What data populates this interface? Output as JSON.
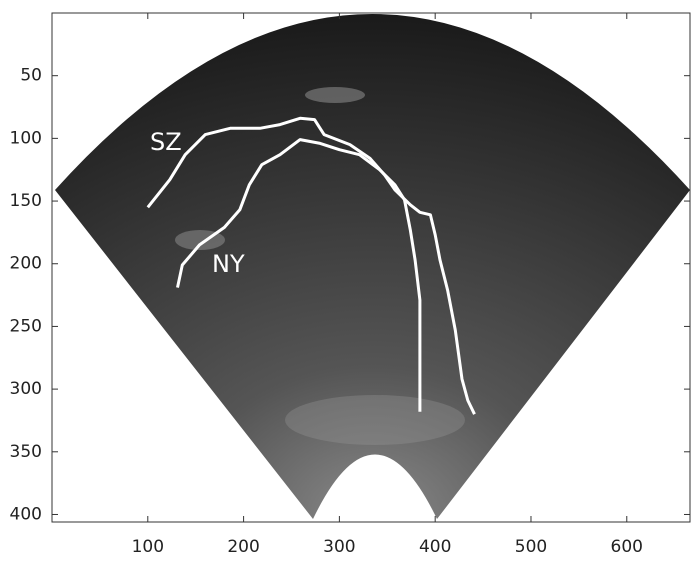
{
  "chart_data": {
    "type": "line",
    "xlim": [
      0,
      666
    ],
    "ylim": [
      0,
      406
    ],
    "y_reversed": true,
    "xticks": [
      100,
      200,
      300,
      400,
      500,
      600
    ],
    "yticks": [
      50,
      100,
      150,
      200,
      250,
      300,
      350,
      400
    ],
    "series": [
      {
        "name": "SZ",
        "color": "#ffffff",
        "x": [
          100,
          123,
          139,
          160,
          186,
          217,
          238,
          259,
          274,
          284,
          311,
          332,
          347,
          358,
          374,
          384,
          395,
          400,
          405,
          413,
          421,
          428,
          434,
          441
        ],
        "values": [
          155,
          133,
          113,
          97,
          92,
          92,
          89,
          84,
          85,
          97,
          105,
          116,
          129,
          141,
          153,
          159,
          161,
          177,
          197,
          221,
          253,
          292,
          309,
          320
        ]
      },
      {
        "name": "NY",
        "color": "#ffffff",
        "x": [
          131,
          136,
          154,
          180,
          196,
          206,
          219,
          238,
          259,
          280,
          300,
          321,
          342,
          358,
          368,
          374,
          379,
          384,
          384,
          384
        ],
        "values": [
          219,
          201,
          185,
          171,
          157,
          137,
          121,
          113,
          101,
          104,
          109,
          113,
          125,
          137,
          149,
          173,
          197,
          229,
          269,
          318
        ]
      }
    ]
  }
}
